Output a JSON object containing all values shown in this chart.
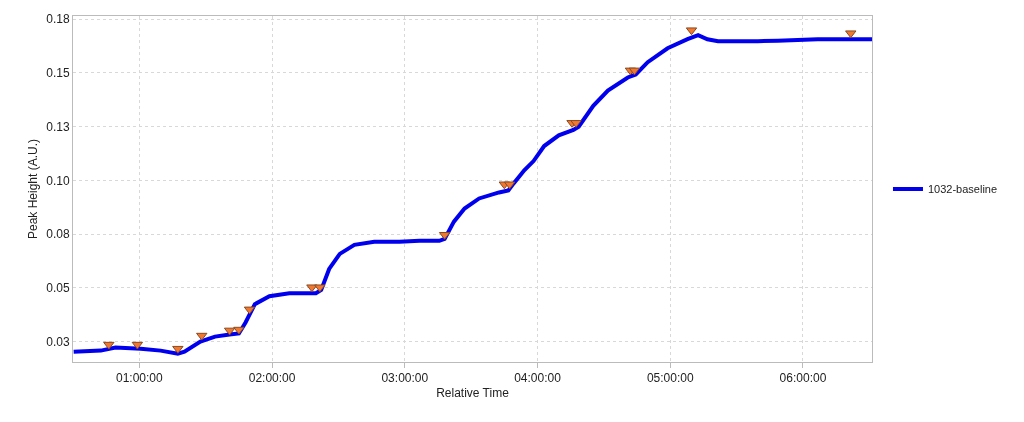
{
  "chart_data": {
    "type": "line",
    "xlabel": "Relative Time",
    "ylabel": "Peak Height (A.U.)",
    "xlim": [
      0.5,
      6.52
    ],
    "xticks": [
      {
        "value": 1,
        "label": "01:00:00"
      },
      {
        "value": 2,
        "label": "02:00:00"
      },
      {
        "value": 3,
        "label": "03:00:00"
      },
      {
        "value": 4,
        "label": "04:00:00"
      },
      {
        "value": 5,
        "label": "05:00:00"
      },
      {
        "value": 6,
        "label": "06:00:00"
      }
    ],
    "ylim": [
      0.0205,
      0.1815
    ],
    "yticks": [
      {
        "value": 0.03,
        "label": "0.03"
      },
      {
        "value": 0.055,
        "label": "0.05"
      },
      {
        "value": 0.08,
        "label": "0.08"
      },
      {
        "value": 0.105,
        "label": "0.10"
      },
      {
        "value": 0.13,
        "label": "0.13"
      },
      {
        "value": 0.155,
        "label": "0.15"
      },
      {
        "value": 0.18,
        "label": "0.18"
      }
    ],
    "grid": true,
    "legend": "right",
    "series": [
      {
        "name": "1032-baseline",
        "color": "#0000ee",
        "marker": "none",
        "line_style": "solid",
        "x": [
          0.505,
          0.71,
          0.82,
          1.01,
          1.16,
          1.29,
          1.34,
          1.46,
          1.57,
          1.68,
          1.75,
          1.8,
          1.87,
          1.98,
          2.13,
          2.33,
          2.37,
          2.43,
          2.51,
          2.62,
          2.77,
          2.96,
          3.11,
          3.26,
          3.3,
          3.37,
          3.45,
          3.56,
          3.71,
          3.78,
          3.82,
          3.9,
          3.97,
          4.05,
          4.16,
          4.27,
          4.31,
          4.42,
          4.53,
          4.68,
          4.74,
          4.83,
          4.98,
          5.13,
          5.21,
          5.28,
          5.36,
          5.66,
          5.81,
          6.11,
          6.33,
          6.52
        ],
        "values": [
          0.0253,
          0.0258,
          0.0272,
          0.0267,
          0.0258,
          0.0244,
          0.0253,
          0.03,
          0.0323,
          0.0333,
          0.0338,
          0.0389,
          0.0474,
          0.0511,
          0.0525,
          0.0525,
          0.054,
          0.0638,
          0.0708,
          0.075,
          0.0764,
          0.0764,
          0.0769,
          0.0769,
          0.0778,
          0.0858,
          0.0919,
          0.0966,
          0.0994,
          0.1003,
          0.1036,
          0.1097,
          0.114,
          0.121,
          0.126,
          0.1285,
          0.13,
          0.1397,
          0.1468,
          0.1529,
          0.1543,
          0.16,
          0.1665,
          0.1707,
          0.1726,
          0.1707,
          0.1698,
          0.1698,
          0.17,
          0.1707,
          0.1707,
          0.1707
        ]
      },
      {
        "color": "#f07830",
        "type": "scatter",
        "marker": "triangle",
        "x": [
          0.77,
          0.985,
          1.29,
          1.47,
          1.68,
          1.75,
          1.83,
          2.3,
          2.36,
          3.3,
          3.75,
          3.79,
          4.26,
          4.29,
          4.7,
          4.73,
          5.16,
          6.36
        ],
        "values": [
          0.0286,
          0.0286,
          0.0267,
          0.0328,
          0.0352,
          0.0356,
          0.045,
          0.0553,
          0.0553,
          0.0797,
          0.1032,
          0.1032,
          0.1318,
          0.1318,
          0.1562,
          0.1562,
          0.1749,
          0.1735
        ]
      }
    ]
  }
}
